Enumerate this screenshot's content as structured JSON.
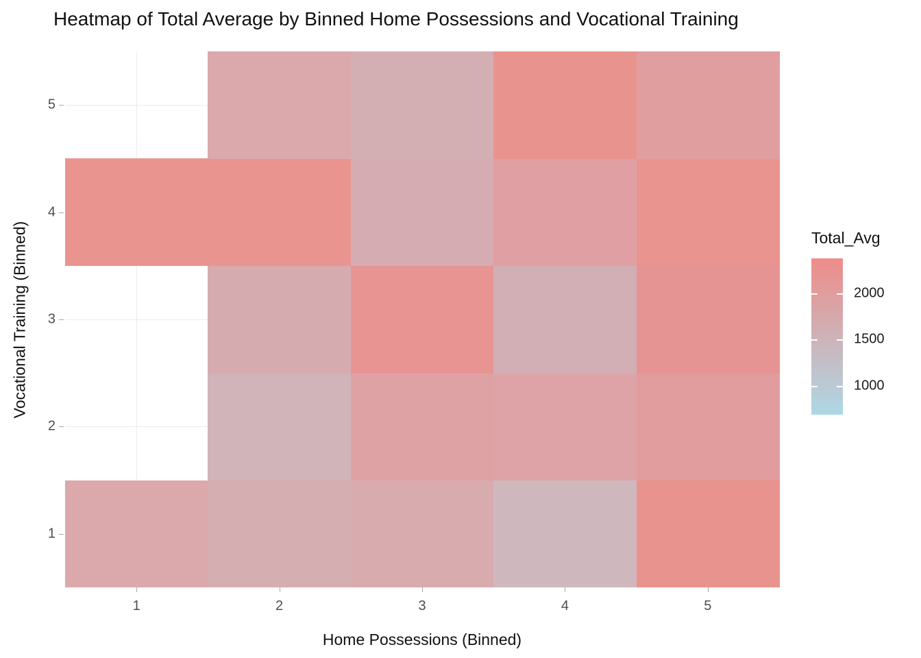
{
  "title": "Heatmap of Total Average by Binned Home Possessions and Vocational Training",
  "chart_data": {
    "type": "heatmap",
    "title": "Heatmap of Total Average by Binned Home Possessions and Vocational Training",
    "xlabel": "Home Possessions (Binned)",
    "ylabel": "Vocational Training (Binned)",
    "x_categories": [
      "1",
      "2",
      "3",
      "4",
      "5"
    ],
    "y_categories": [
      "1",
      "2",
      "3",
      "4",
      "5"
    ],
    "grid": true,
    "panel_background": "#ffffff",
    "gridline_color": "#ebebeb",
    "legend": {
      "title": "Total_Avg",
      "position": "right",
      "tick_values": [
        2000,
        1500,
        1000
      ],
      "domain_min": 685,
      "domain_max": 2375,
      "color_low": "#ADD8E6",
      "color_high": "#EF8C88"
    },
    "cells": [
      {
        "x": 1,
        "y": 1,
        "value": 1810,
        "color": "#DBA9AC"
      },
      {
        "x": 2,
        "y": 1,
        "value": 1660,
        "color": "#D5AEB1"
      },
      {
        "x": 3,
        "y": 1,
        "value": 1740,
        "color": "#D8ABAE"
      },
      {
        "x": 4,
        "y": 1,
        "value": 1480,
        "color": "#CFB8BD"
      },
      {
        "x": 5,
        "y": 1,
        "value": 2270,
        "color": "#E9938F"
      },
      {
        "x": 2,
        "y": 2,
        "value": 1540,
        "color": "#D1B4B9"
      },
      {
        "x": 3,
        "y": 2,
        "value": 1970,
        "color": "#DFA2A4"
      },
      {
        "x": 4,
        "y": 2,
        "value": 1950,
        "color": "#DEA3A6"
      },
      {
        "x": 5,
        "y": 2,
        "value": 2020,
        "color": "#E19C9E"
      },
      {
        "x": 2,
        "y": 3,
        "value": 1700,
        "color": "#D5ABAF"
      },
      {
        "x": 3,
        "y": 3,
        "value": 2230,
        "color": "#E89492"
      },
      {
        "x": 4,
        "y": 3,
        "value": 1630,
        "color": "#D2AFB5"
      },
      {
        "x": 5,
        "y": 3,
        "value": 2210,
        "color": "#E59493"
      },
      {
        "x": 1,
        "y": 4,
        "value": 2250,
        "color": "#E9948F"
      },
      {
        "x": 2,
        "y": 4,
        "value": 2250,
        "color": "#E9948F"
      },
      {
        "x": 3,
        "y": 4,
        "value": 1690,
        "color": "#D5ACB1"
      },
      {
        "x": 4,
        "y": 4,
        "value": 1950,
        "color": "#E0A0A3"
      },
      {
        "x": 5,
        "y": 4,
        "value": 2250,
        "color": "#E9948F"
      },
      {
        "x": 2,
        "y": 5,
        "value": 1820,
        "color": "#DBA8AB"
      },
      {
        "x": 3,
        "y": 5,
        "value": 1630,
        "color": "#D3AFB4"
      },
      {
        "x": 4,
        "y": 5,
        "value": 2270,
        "color": "#E9938F"
      },
      {
        "x": 5,
        "y": 5,
        "value": 2030,
        "color": "#E19E9E"
      }
    ],
    "missing_cells": [
      {
        "x": 1,
        "y": 2
      },
      {
        "x": 1,
        "y": 3
      },
      {
        "x": 1,
        "y": 5
      }
    ]
  }
}
